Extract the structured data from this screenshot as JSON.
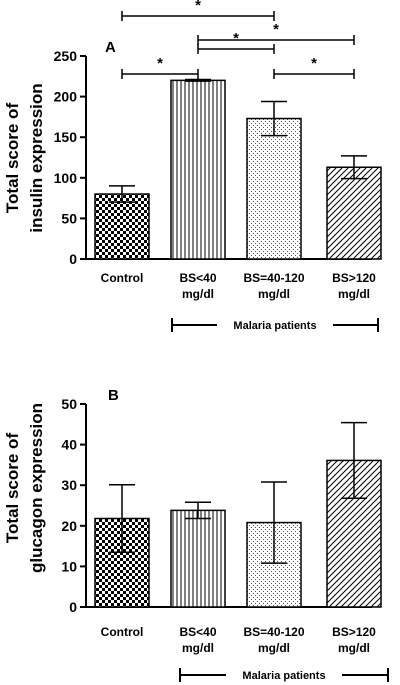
{
  "chart_data": [
    {
      "type": "bar",
      "panel": "A",
      "ylabel_lines": [
        "Total score of",
        "insulin expression"
      ],
      "ylim": [
        0,
        250
      ],
      "yticks": [
        "0",
        "50",
        "100",
        "150",
        "200",
        "250"
      ],
      "categories": [
        [
          "Control"
        ],
        [
          "BS<40",
          "mg/dl"
        ],
        [
          "BS=40-120",
          "mg/dl"
        ],
        [
          "BS>120",
          "mg/dl"
        ]
      ],
      "values": [
        80,
        220,
        173,
        113
      ],
      "errors": [
        10,
        1,
        21,
        14
      ],
      "patterns": [
        "checker",
        "vlines",
        "dots",
        "diag"
      ],
      "group_label": "Malaria patients",
      "significance": [
        {
          "from": 0,
          "to": 2,
          "label": "*"
        },
        {
          "from": 1,
          "to": 3,
          "label": "*"
        },
        {
          "from": 1,
          "to": 2,
          "label": "*"
        },
        {
          "from": 0,
          "to": 1,
          "label": "*"
        },
        {
          "from": 2,
          "to": 3,
          "label": "*"
        }
      ]
    },
    {
      "type": "bar",
      "panel": "B",
      "ylabel_lines": [
        "Total score of",
        "glucagon expression"
      ],
      "ylim": [
        0,
        50
      ],
      "yticks": [
        "0",
        "10",
        "20",
        "30",
        "40",
        "50"
      ],
      "categories": [
        [
          "Control"
        ],
        [
          "BS<40",
          "mg/dl"
        ],
        [
          "BS=40-120",
          "mg/dl"
        ],
        [
          "BS>120",
          "mg/dl"
        ]
      ],
      "values": [
        21.8,
        23.8,
        20.8,
        36.1
      ],
      "errors": [
        8.3,
        2.0,
        10.0,
        9.3
      ],
      "patterns": [
        "checker",
        "vlines",
        "dots",
        "diag"
      ],
      "group_label": "Malaria patients",
      "significance": []
    }
  ]
}
